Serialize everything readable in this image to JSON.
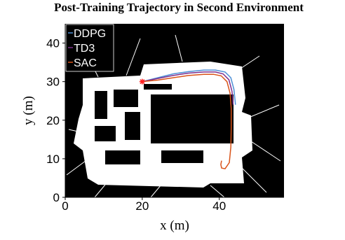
{
  "chart_data": {
    "type": "line",
    "title": "Post-Training Trajectory in Second Environment",
    "x_label": "x (m)",
    "y_label": "y (m)",
    "xlim": [
      0,
      56.8
    ],
    "ylim": [
      0,
      45
    ],
    "xticks": [
      0,
      20,
      40
    ],
    "yticks": [
      0,
      10,
      20,
      30,
      40
    ],
    "legend": "upper left",
    "start_point": {
      "x": 20,
      "y": 30,
      "color": "#ff2020"
    },
    "series": [
      {
        "name": "DDPG",
        "color": "#4d8fd6",
        "x": [
          20,
          24,
          28,
          32,
          36,
          39,
          41.5,
          43,
          43.8,
          44.2
        ],
        "y": [
          30,
          31,
          32,
          32.6,
          33,
          33,
          32.5,
          31,
          28,
          24
        ]
      },
      {
        "name": "TD3",
        "color": "#7e2f8e",
        "x": [
          20,
          24,
          28,
          32,
          36,
          39,
          41,
          42.5,
          43.3,
          43.6
        ],
        "y": [
          30,
          30.8,
          31.6,
          32.2,
          32.5,
          32.5,
          32,
          30.5,
          27.5,
          24
        ]
      },
      {
        "name": "SAC",
        "color": "#d95319",
        "x": [
          20,
          24,
          28,
          32,
          36,
          38.5,
          40.5,
          42,
          42.8,
          43.1,
          43.1,
          43,
          42.6,
          41.5,
          40.6,
          40.4,
          40.6
        ],
        "y": [
          30,
          30.4,
          31,
          31.6,
          31.9,
          31.9,
          31.5,
          30,
          27,
          23,
          18,
          13,
          9,
          7.4,
          7.6,
          8.5,
          9.5
        ]
      }
    ]
  }
}
